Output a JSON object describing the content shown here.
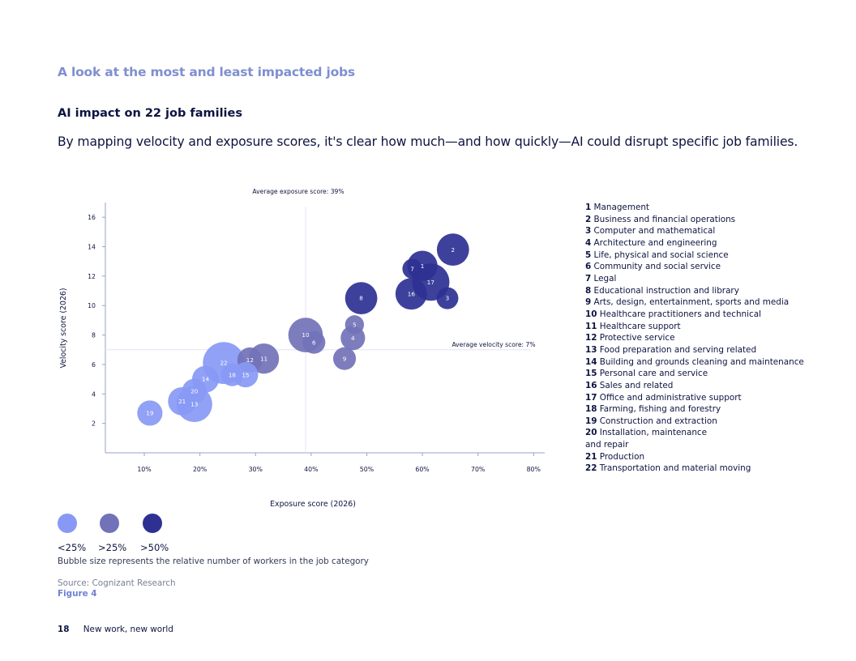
{
  "section_title": "A look at the most and least impacted jobs",
  "chart_heading": "AI impact on 22 job families",
  "intro_text": "By mapping velocity and exposure scores, it's clear how much—and how quickly—AI could disrupt specific job families.",
  "chart_data": {
    "type": "bubble",
    "xlabel": "Exposure score (2026)",
    "ylabel": "Velocity score (2026)",
    "xlim": [
      3,
      82
    ],
    "ylim": [
      0,
      17
    ],
    "x_ticks": [
      10,
      20,
      30,
      40,
      50,
      60,
      70,
      80
    ],
    "x_tick_labels": [
      "10%",
      "20%",
      "30%",
      "40%",
      "50%",
      "60%",
      "70%",
      "80%"
    ],
    "y_ticks": [
      2,
      4,
      6,
      8,
      10,
      12,
      14,
      16
    ],
    "y_tick_labels": [
      "2",
      "4",
      "6",
      "8",
      "10",
      "12",
      "14",
      "16"
    ],
    "avg_exposure": 39,
    "avg_velocity": 7,
    "avg_exposure_label": "Average exposure score: 39%",
    "avg_velocity_label": "Average velocity score: 7%",
    "colors": {
      "low": "#8899f5",
      "mid": "#7272b8",
      "high": "#2e3192"
    },
    "points": [
      {
        "id": 1,
        "x": 60,
        "y": 12.7,
        "size": 2.3,
        "group": "high"
      },
      {
        "id": 2,
        "x": 65.5,
        "y": 13.8,
        "size": 2.6,
        "group": "high"
      },
      {
        "id": 3,
        "x": 64.5,
        "y": 10.5,
        "size": 1.2,
        "group": "high"
      },
      {
        "id": 4,
        "x": 47.5,
        "y": 7.8,
        "size": 1.5,
        "group": "mid"
      },
      {
        "id": 5,
        "x": 47.8,
        "y": 8.7,
        "size": 0.9,
        "group": "mid"
      },
      {
        "id": 6,
        "x": 40.5,
        "y": 7.5,
        "size": 1.3,
        "group": "mid"
      },
      {
        "id": 7,
        "x": 58.2,
        "y": 12.5,
        "size": 1.0,
        "group": "high"
      },
      {
        "id": 8,
        "x": 49,
        "y": 10.5,
        "size": 2.6,
        "group": "high"
      },
      {
        "id": 9,
        "x": 46,
        "y": 6.4,
        "size": 1.3,
        "group": "mid"
      },
      {
        "id": 10,
        "x": 39,
        "y": 8.0,
        "size": 3.0,
        "group": "mid"
      },
      {
        "id": 11,
        "x": 31.5,
        "y": 6.4,
        "size": 2.3,
        "group": "mid"
      },
      {
        "id": 12,
        "x": 29,
        "y": 6.3,
        "size": 1.6,
        "group": "mid"
      },
      {
        "id": 13,
        "x": 19,
        "y": 3.3,
        "size": 3.2,
        "group": "low"
      },
      {
        "id": 14,
        "x": 21,
        "y": 5.0,
        "size": 1.8,
        "group": "low"
      },
      {
        "id": 15,
        "x": 28.2,
        "y": 5.3,
        "size": 1.6,
        "group": "low"
      },
      {
        "id": 16,
        "x": 58,
        "y": 10.8,
        "size": 2.5,
        "group": "high"
      },
      {
        "id": 17,
        "x": 61.5,
        "y": 11.6,
        "size": 3.5,
        "group": "high"
      },
      {
        "id": 18,
        "x": 25.8,
        "y": 5.3,
        "size": 1.3,
        "group": "low"
      },
      {
        "id": 19,
        "x": 11,
        "y": 2.7,
        "size": 1.6,
        "group": "low"
      },
      {
        "id": 20,
        "x": 19,
        "y": 4.2,
        "size": 1.5,
        "group": "low"
      },
      {
        "id": 21,
        "x": 16.8,
        "y": 3.5,
        "size": 2.0,
        "group": "low"
      },
      {
        "id": 22,
        "x": 24.3,
        "y": 6.1,
        "size": 4.4,
        "group": "low"
      }
    ]
  },
  "job_families": [
    {
      "num": "1",
      "name": "Management"
    },
    {
      "num": "2",
      "name": "Business and financial operations"
    },
    {
      "num": "3",
      "name": "Computer and mathematical"
    },
    {
      "num": "4",
      "name": "Architecture and engineering"
    },
    {
      "num": "5",
      "name": "Life, physical and social science"
    },
    {
      "num": "6",
      "name": "Community and social service"
    },
    {
      "num": "7",
      "name": "Legal"
    },
    {
      "num": "8",
      "name": "Educational instruction and library"
    },
    {
      "num": "9",
      "name": "Arts, design, entertainment, sports and media"
    },
    {
      "num": "10",
      "name": "Healthcare practitioners and technical"
    },
    {
      "num": "11",
      "name": "Healthcare support"
    },
    {
      "num": "12",
      "name": "Protective service"
    },
    {
      "num": "13",
      "name": "Food preparation and serving related"
    },
    {
      "num": "14",
      "name": "Building and grounds cleaning and maintenance"
    },
    {
      "num": "15",
      "name": "Personal care and service"
    },
    {
      "num": "16",
      "name": "Sales and related"
    },
    {
      "num": "17",
      "name": "Office and administrative support"
    },
    {
      "num": "18",
      "name": "Farming, fishing and forestry"
    },
    {
      "num": "19",
      "name": "Construction and extraction"
    },
    {
      "num": "20",
      "name": "Installation, maintenance and repair"
    },
    {
      "num": "21",
      "name": "Production"
    },
    {
      "num": "22",
      "name": "Transportation and material moving"
    }
  ],
  "size_legend": {
    "low_label": "<25%",
    "mid_label": ">25%",
    "high_label": ">50%",
    "note": "Bubble size represents the relative number of workers in the job category"
  },
  "source": "Source: Cognizant Research",
  "figure_label": "Figure 4",
  "footer": {
    "page_number": "18",
    "title": "New work, new world"
  }
}
